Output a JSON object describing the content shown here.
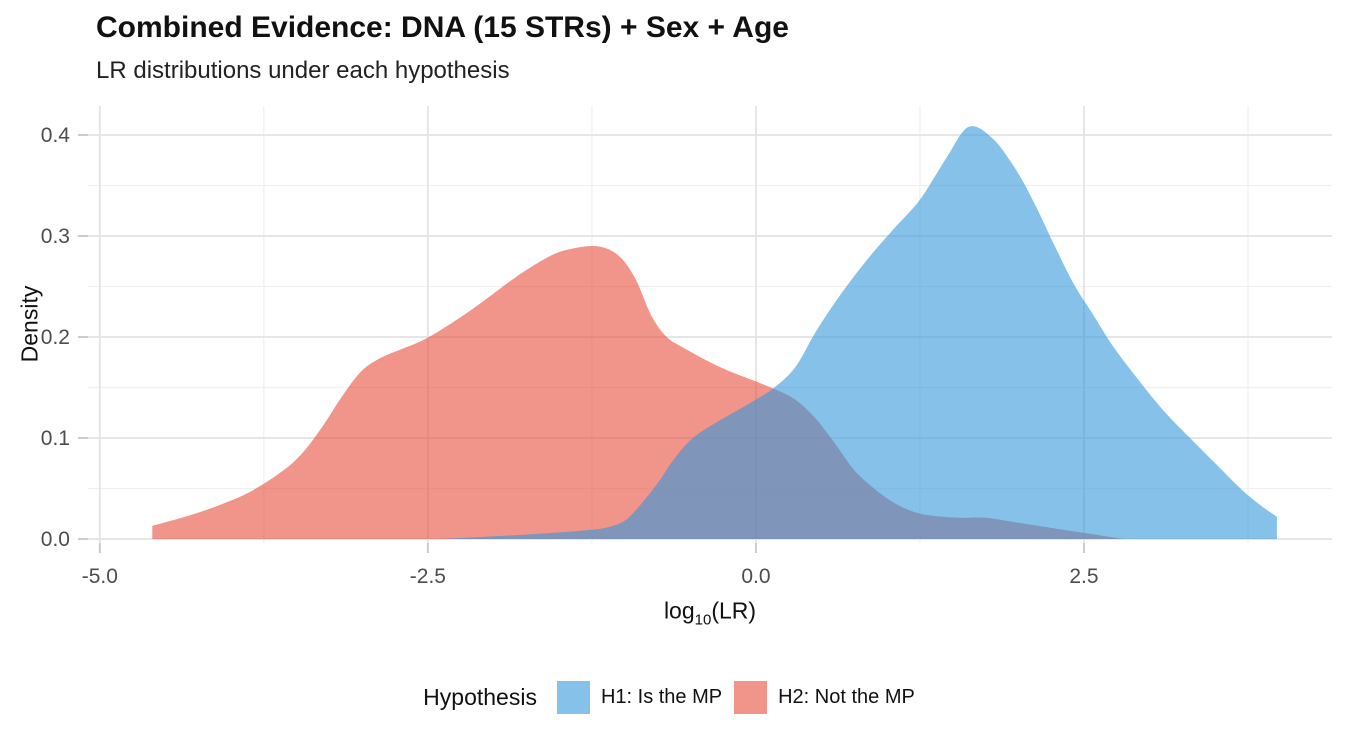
{
  "header": {
    "title": "Combined Evidence: DNA (15 STRs) + Sex + Age",
    "subtitle": "LR distributions under each hypothesis"
  },
  "axes": {
    "x": {
      "label": "log10(LR)",
      "label_parts": {
        "prefix": "log",
        "sub": "10",
        "suffix": "(LR)"
      },
      "tick_labels": [
        "-5.0",
        "-2.5",
        "0.0",
        "2.5"
      ],
      "tick_values": [
        -5.0,
        -2.5,
        0.0,
        2.5
      ],
      "minor_values": [
        -3.75,
        -1.25,
        1.25,
        3.75
      ]
    },
    "y": {
      "label": "Density",
      "tick_labels": [
        "0.0",
        "0.1",
        "0.2",
        "0.3",
        "0.4"
      ],
      "tick_values": [
        0.0,
        0.1,
        0.2,
        0.3,
        0.4
      ],
      "minor_values": [
        0.05,
        0.15,
        0.25,
        0.35
      ]
    }
  },
  "legend": {
    "title": "Hypothesis",
    "items": [
      {
        "label": "H1: Is the MP",
        "swatch_color": "#85c1e9"
      },
      {
        "label": "H2: Not the MP",
        "swatch_color": "#f1948a"
      }
    ]
  },
  "colors": {
    "h1_fill": "rgba(52,152,219,0.6)",
    "h1_base": "#3498db",
    "h2_fill": "rgba(231,76,60,0.6)",
    "h2_base": "#e74c3c",
    "grid_major": "#e3e3e3",
    "grid_minor": "#f0f0f0",
    "tick_mark": "#cccccc",
    "tick_text": "#4d4d4d"
  },
  "chart_data": {
    "type": "area",
    "subtype": "density",
    "title": "Combined Evidence: DNA (15 STRs) + Sex + Age",
    "subtitle": "LR distributions under each hypothesis",
    "xlabel": "log10(LR)",
    "ylabel": "Density",
    "xlim": [
      -5.09,
      4.39
    ],
    "ylim": [
      0,
      0.433
    ],
    "grid": "on",
    "legend_position": "bottom",
    "legend_title": "Hypothesis",
    "series": [
      {
        "name": "H2: Not the MP",
        "hypothesis": "H2",
        "fill": "rgba(231,76,60,0.6)",
        "base_color": "#e74c3c",
        "peak": {
          "x": -1.22,
          "density": 0.29
        },
        "points": [
          [
            -4.6,
            0.013
          ],
          [
            -4.35,
            0.022
          ],
          [
            -4.1,
            0.033
          ],
          [
            -3.85,
            0.047
          ],
          [
            -3.6,
            0.068
          ],
          [
            -3.45,
            0.086
          ],
          [
            -3.3,
            0.112
          ],
          [
            -3.15,
            0.142
          ],
          [
            -3.0,
            0.167
          ],
          [
            -2.85,
            0.18
          ],
          [
            -2.7,
            0.188
          ],
          [
            -2.55,
            0.196
          ],
          [
            -2.4,
            0.207
          ],
          [
            -2.2,
            0.224
          ],
          [
            -2.0,
            0.243
          ],
          [
            -1.8,
            0.262
          ],
          [
            -1.6,
            0.278
          ],
          [
            -1.45,
            0.286
          ],
          [
            -1.22,
            0.29
          ],
          [
            -1.05,
            0.281
          ],
          [
            -0.92,
            0.258
          ],
          [
            -0.8,
            0.222
          ],
          [
            -0.68,
            0.2
          ],
          [
            -0.52,
            0.187
          ],
          [
            -0.35,
            0.175
          ],
          [
            -0.18,
            0.165
          ],
          [
            0.0,
            0.156
          ],
          [
            0.15,
            0.148
          ],
          [
            0.3,
            0.138
          ],
          [
            0.45,
            0.12
          ],
          [
            0.6,
            0.095
          ],
          [
            0.75,
            0.068
          ],
          [
            0.9,
            0.05
          ],
          [
            1.05,
            0.036
          ],
          [
            1.2,
            0.027
          ],
          [
            1.35,
            0.023
          ],
          [
            1.55,
            0.021
          ],
          [
            1.75,
            0.021
          ],
          [
            2.0,
            0.016
          ],
          [
            2.25,
            0.011
          ],
          [
            2.5,
            0.006
          ],
          [
            2.8,
            0.0
          ]
        ]
      },
      {
        "name": "H1: Is the MP",
        "hypothesis": "H1",
        "fill": "rgba(52,152,219,0.6)",
        "base_color": "#3498db",
        "peak": {
          "x": 1.62,
          "density": 0.408
        },
        "points": [
          [
            -2.4,
            0.0
          ],
          [
            -2.1,
            0.002
          ],
          [
            -1.8,
            0.004
          ],
          [
            -1.55,
            0.006
          ],
          [
            -1.35,
            0.008
          ],
          [
            -1.15,
            0.011
          ],
          [
            -1.0,
            0.018
          ],
          [
            -0.88,
            0.034
          ],
          [
            -0.75,
            0.055
          ],
          [
            -0.62,
            0.08
          ],
          [
            -0.48,
            0.1
          ],
          [
            -0.32,
            0.114
          ],
          [
            -0.16,
            0.126
          ],
          [
            0.0,
            0.138
          ],
          [
            0.14,
            0.15
          ],
          [
            0.3,
            0.17
          ],
          [
            0.46,
            0.206
          ],
          [
            0.65,
            0.243
          ],
          [
            0.85,
            0.277
          ],
          [
            1.05,
            0.307
          ],
          [
            1.25,
            0.336
          ],
          [
            1.45,
            0.377
          ],
          [
            1.62,
            0.408
          ],
          [
            1.8,
            0.397
          ],
          [
            1.97,
            0.368
          ],
          [
            2.12,
            0.333
          ],
          [
            2.27,
            0.292
          ],
          [
            2.42,
            0.253
          ],
          [
            2.57,
            0.222
          ],
          [
            2.72,
            0.191
          ],
          [
            2.9,
            0.16
          ],
          [
            3.1,
            0.128
          ],
          [
            3.3,
            0.101
          ],
          [
            3.5,
            0.075
          ],
          [
            3.7,
            0.049
          ],
          [
            3.85,
            0.033
          ],
          [
            3.97,
            0.022
          ]
        ]
      }
    ]
  }
}
